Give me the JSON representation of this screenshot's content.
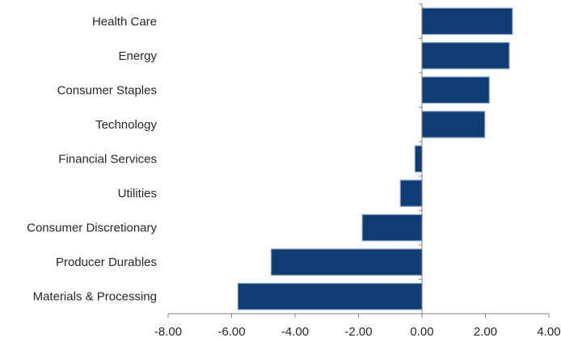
{
  "chart_data": {
    "type": "bar",
    "orientation": "horizontal",
    "title": "",
    "xlabel": "",
    "ylabel": "",
    "categories": [
      "Health Care",
      "Energy",
      "Consumer Staples",
      "Technology",
      "Financial Services",
      "Utilities",
      "Consumer Discretionary",
      "Producer Durables",
      "Materials & Processing"
    ],
    "values": [
      2.85,
      2.75,
      2.12,
      1.98,
      -0.22,
      -0.68,
      -1.88,
      -4.75,
      -5.8
    ],
    "xlim": [
      -8,
      4
    ],
    "xticks": [
      -8,
      -6,
      -4,
      -2,
      0,
      2,
      4
    ],
    "xtick_labels": [
      "-8.00",
      "-6.00",
      "-4.00",
      "-2.00",
      "0.00",
      "2.00",
      "4.00"
    ],
    "grid": false,
    "legend": "none",
    "bar_color": "#0f3d73"
  }
}
